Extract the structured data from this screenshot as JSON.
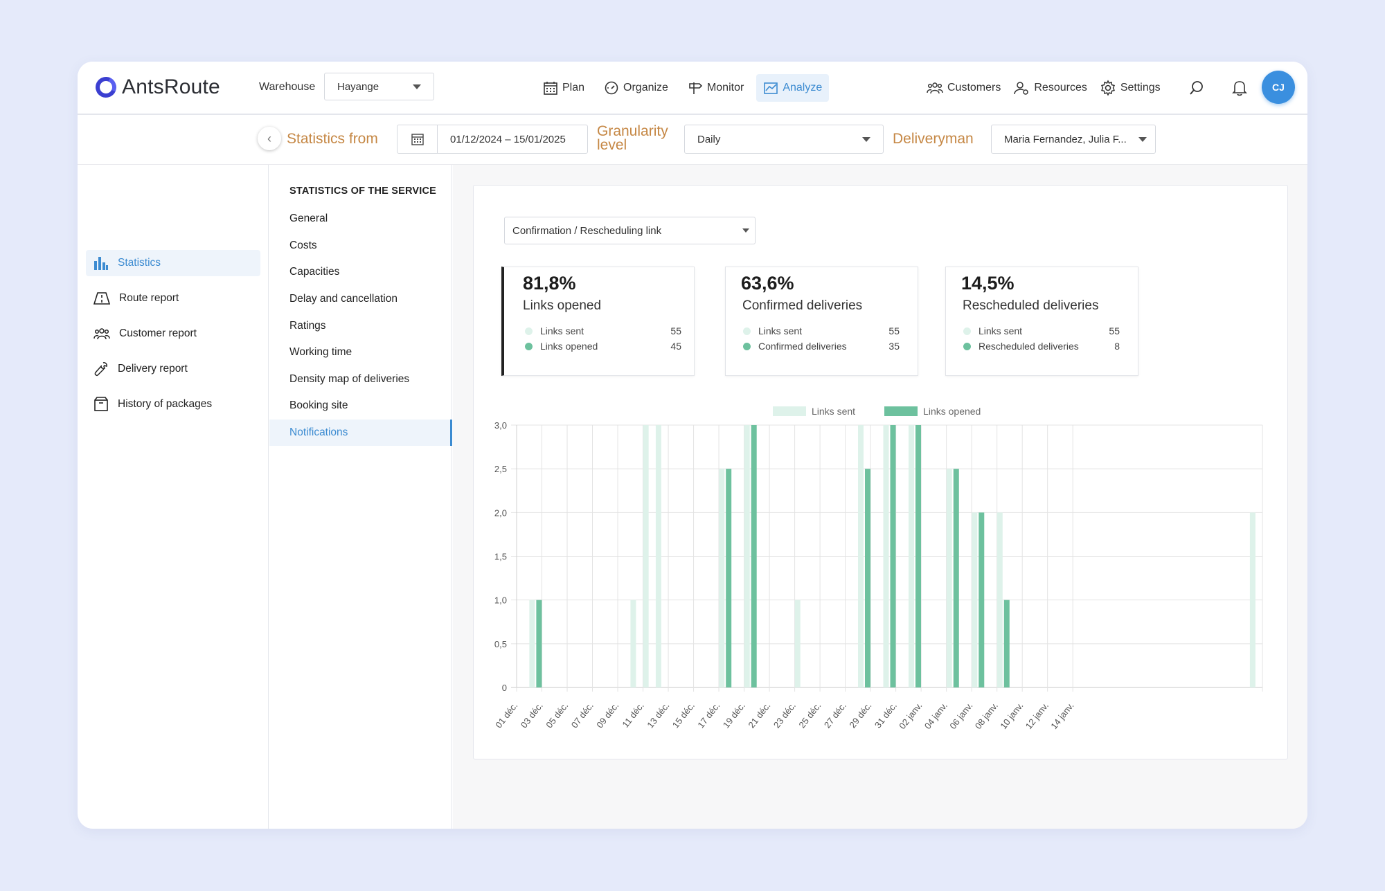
{
  "header": {
    "logo_text": "AntsRoute",
    "warehouse_label": "Warehouse",
    "warehouse_value": "Hayange",
    "nav": [
      {
        "label": "Plan",
        "icon": "calendar-icon"
      },
      {
        "label": "Organize",
        "icon": "gauge-icon"
      },
      {
        "label": "Monitor",
        "icon": "signpost-icon"
      },
      {
        "label": "Analyze",
        "icon": "chart-icon",
        "active": true
      }
    ],
    "nav_right": [
      {
        "label": "Customers",
        "icon": "people-icon"
      },
      {
        "label": "Resources",
        "icon": "user-gear-icon"
      },
      {
        "label": "Settings",
        "icon": "gear-icon"
      }
    ],
    "avatar_initials": "CJ"
  },
  "filters": {
    "statistics_from_label": "Statistics from",
    "date_range": "01/12/2024 – 15/01/2025",
    "granularity_label_1": "Granularity",
    "granularity_label_2": "level",
    "granularity_value": "Daily",
    "deliveryman_label": "Deliveryman",
    "deliveryman_value": "Maria Fernandez, Julia F..."
  },
  "sidebar": {
    "items": [
      {
        "label": "Statistics",
        "icon": "bar-chart-icon",
        "active": true
      },
      {
        "label": "Route report",
        "icon": "road-icon"
      },
      {
        "label": "Customer report",
        "icon": "people-icon"
      },
      {
        "label": "Delivery report",
        "icon": "wrench-icon"
      },
      {
        "label": "History of packages",
        "icon": "package-icon"
      }
    ]
  },
  "submenu": {
    "title": "STATISTICS OF THE SERVICE",
    "items": [
      "General",
      "Costs",
      "Capacities",
      "Delay and cancellation",
      "Ratings",
      "Working time",
      "Density map of deliveries",
      "Booking site",
      "Notifications"
    ],
    "active_index": 8
  },
  "main": {
    "report_select": "Confirmation / Rescheduling link",
    "cards": [
      {
        "percent": "81,8%",
        "title": "Links opened",
        "rows": [
          {
            "label": "Links sent",
            "value": "55"
          },
          {
            "label": "Links opened",
            "value": "45"
          }
        ]
      },
      {
        "percent": "63,6%",
        "title": "Confirmed deliveries",
        "rows": [
          {
            "label": "Links sent",
            "value": "55"
          },
          {
            "label": "Confirmed deliveries",
            "value": "35"
          }
        ]
      },
      {
        "percent": "14,5%",
        "title": "Rescheduled deliveries",
        "rows": [
          {
            "label": "Links sent",
            "value": "55"
          },
          {
            "label": "Rescheduled deliveries",
            "value": "8"
          }
        ]
      }
    ]
  },
  "colors": {
    "light_green": "#def2ea",
    "green": "#6dc19e",
    "accent_blue": "#3c8bd1",
    "label_orange": "#c58744"
  },
  "chart_data": {
    "type": "bar",
    "legend": [
      "Links sent",
      "Links opened"
    ],
    "legend_position": "top-center",
    "ylim": [
      0,
      3
    ],
    "y_ticks": [
      "0",
      "0,5",
      "1,0",
      "1,5",
      "2,0",
      "2,5",
      "3,0"
    ],
    "x_tick_labels": [
      "01 déc.",
      "03 déc.",
      "05 déc.",
      "07 déc.",
      "09 déc.",
      "11 déc.",
      "13 déc.",
      "15 déc.",
      "17 déc.",
      "19 déc.",
      "21 déc.",
      "23 déc.",
      "25 déc.",
      "27 déc.",
      "29 déc.",
      "31 déc.",
      "02 janv.",
      "04 janv.",
      "06 janv.",
      "08 janv.",
      "10 janv.",
      "12 janv.",
      "14 janv."
    ],
    "grid": true,
    "series": [
      {
        "name": "Links sent",
        "values": [
          0,
          1,
          0,
          0,
          0,
          0,
          0,
          0,
          0,
          1,
          3,
          3,
          0,
          0,
          0,
          0,
          2.5,
          0,
          3,
          0,
          0,
          0,
          1,
          0,
          0,
          0,
          0,
          3,
          0,
          3,
          0,
          3,
          0,
          0,
          2.5,
          0,
          2,
          0,
          2,
          0,
          0,
          0,
          0,
          0,
          0,
          0,
          0,
          0,
          0,
          0,
          0,
          0,
          0,
          0,
          0,
          0,
          0,
          0,
          2
        ]
      },
      {
        "name": "Links opened",
        "values": [
          0,
          1,
          0,
          0,
          0,
          0,
          0,
          0,
          0,
          0,
          0,
          0,
          0,
          0,
          0,
          0,
          2.5,
          0,
          3,
          0,
          0,
          0,
          0,
          0,
          0,
          0,
          0,
          2.5,
          0,
          3,
          0,
          3,
          0,
          0,
          2.5,
          0,
          2,
          0,
          1,
          0,
          0,
          0,
          0,
          0,
          0,
          0,
          0,
          0,
          0,
          0,
          0,
          0,
          0,
          0,
          0,
          0,
          0,
          0,
          0
        ]
      }
    ]
  }
}
